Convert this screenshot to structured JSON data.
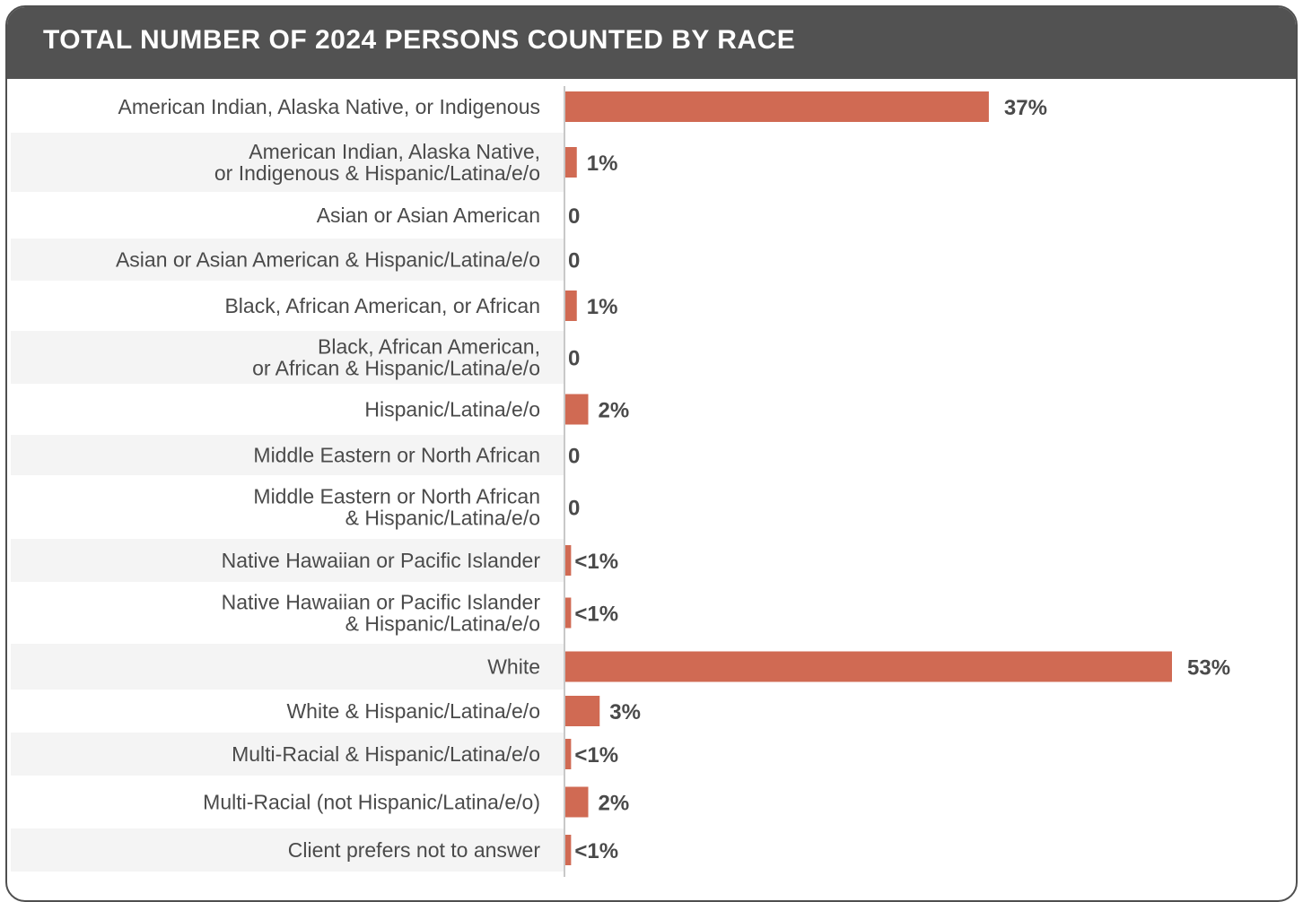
{
  "title": "TOTAL NUMBER OF 2024 PERSONS COUNTED BY RACE",
  "colors": {
    "header": "#525252",
    "bar": "#d06a53",
    "band": "#f4f4f4",
    "axis": "#c8c8c8"
  },
  "chart_data": {
    "type": "bar",
    "orientation": "horizontal",
    "title": "TOTAL NUMBER OF 2024 PERSONS COUNTED BY RACE",
    "xlabel": "",
    "ylabel": "",
    "xlim": [
      0,
      60
    ],
    "grid": false,
    "categories": [
      "American Indian, Alaska Native, or Indigenous",
      "American Indian, Alaska Native,\nor Indigenous & Hispanic/Latina/e/o",
      "Asian or Asian American",
      "Asian or Asian American & Hispanic/Latina/e/o",
      "Black, African American, or African",
      "Black, African American,\nor African & Hispanic/Latina/e/o",
      "Hispanic/Latina/e/o",
      "Middle Eastern or North African",
      "Middle Eastern or North African\n& Hispanic/Latina/e/o",
      "Native Hawaiian or Pacific Islander",
      "Native Hawaiian or Pacific Islander\n& Hispanic/Latina/e/o",
      "White",
      "White & Hispanic/Latina/e/o",
      "Multi-Racial & Hispanic/Latina/e/o",
      "Multi-Racial (not Hispanic/Latina/e/o)",
      "Client prefers not to answer"
    ],
    "values": [
      37,
      1,
      0,
      0,
      1,
      0,
      2,
      0,
      0,
      0.5,
      0.5,
      53,
      3,
      0.5,
      2,
      0.5
    ],
    "value_labels": [
      "37%",
      "1%",
      "0",
      "0",
      "1%",
      "0",
      "2%",
      "0",
      "0",
      "<1%",
      "<1%",
      "53%",
      "3%",
      "<1%",
      "2%",
      "<1%"
    ]
  }
}
